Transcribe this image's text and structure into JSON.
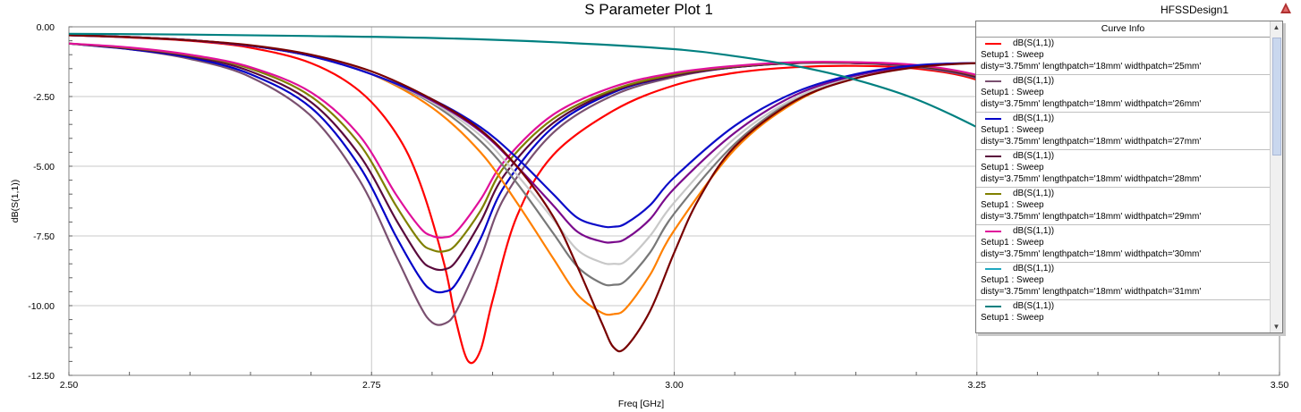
{
  "window": {
    "design_name": "HFSSDesign1"
  },
  "legend": {
    "header": "Curve Info",
    "entries": [
      {
        "name": "dB(S(1,1))",
        "line2": "Setup1 : Sweep",
        "line3": "disty='3.75mm' lengthpatch='18mm' widthpatch='25mm'",
        "color": "#ff0000"
      },
      {
        "name": "dB(S(1,1))",
        "line2": "Setup1 : Sweep",
        "line3": "disty='3.75mm' lengthpatch='18mm' widthpatch='26mm'",
        "color": "#7a5070"
      },
      {
        "name": "dB(S(1,1))",
        "line2": "Setup1 : Sweep",
        "line3": "disty='3.75mm' lengthpatch='18mm' widthpatch='27mm'",
        "color": "#0000c8"
      },
      {
        "name": "dB(S(1,1))",
        "line2": "Setup1 : Sweep",
        "line3": "disty='3.75mm' lengthpatch='18mm' widthpatch='28mm'",
        "color": "#5a0a3c"
      },
      {
        "name": "dB(S(1,1))",
        "line2": "Setup1 : Sweep",
        "line3": "disty='3.75mm' lengthpatch='18mm' widthpatch='29mm'",
        "color": "#808000"
      },
      {
        "name": "dB(S(1,1))",
        "line2": "Setup1 : Sweep",
        "line3": "disty='3.75mm' lengthpatch='18mm' widthpatch='30mm'",
        "color": "#e0109a"
      },
      {
        "name": "dB(S(1,1))",
        "line2": "Setup1 : Sweep",
        "line3": "disty='3.75mm' lengthpatch='18mm' widthpatch='31mm'",
        "color": "#20a8c0"
      },
      {
        "name": "dB(S(1,1))",
        "line2": "Setup1 : Sweep",
        "line3": "",
        "color": "#008080"
      }
    ]
  },
  "chart_data": {
    "type": "line",
    "title": "S Parameter Plot 1",
    "xlabel": "Freq [GHz]",
    "ylabel": "dB(S(1,1))",
    "xlim": [
      2.5,
      3.5
    ],
    "ylim": [
      -12.5,
      0.0
    ],
    "xticks": [
      "2.50",
      "2.75",
      "3.00",
      "3.25",
      "3.50"
    ],
    "yticks": [
      "0.00",
      "-2.50",
      "-5.00",
      "-7.50",
      "-10.00",
      "-12.50"
    ],
    "grid": true,
    "legend_position": "top-right",
    "series": [
      {
        "color": "#ff0000",
        "x": [
          2.5,
          2.55,
          2.6,
          2.65,
          2.7,
          2.74,
          2.77,
          2.79,
          2.81,
          2.82,
          2.83,
          2.84,
          2.85,
          2.87,
          2.9,
          2.95,
          3.0,
          3.05,
          3.1,
          3.15,
          3.2,
          3.25,
          3.3,
          3.35,
          3.4,
          3.45,
          3.5
        ],
        "y": [
          -0.3,
          -0.38,
          -0.5,
          -0.75,
          -1.3,
          -2.3,
          -3.8,
          -5.6,
          -8.5,
          -10.6,
          -12.0,
          -11.6,
          -9.8,
          -6.8,
          -4.6,
          -3.0,
          -2.1,
          -1.65,
          -1.45,
          -1.4,
          -1.5,
          -1.9,
          -2.9,
          -4.6,
          -6.6,
          -8.6,
          -10.3
        ]
      },
      {
        "color": "#7a5070",
        "x": [
          2.5,
          2.55,
          2.6,
          2.65,
          2.7,
          2.74,
          2.77,
          2.79,
          2.8,
          2.81,
          2.82,
          2.84,
          2.86,
          2.9,
          2.95,
          3.0,
          3.05,
          3.1,
          3.15,
          3.2,
          3.25,
          3.3,
          3.35,
          3.4,
          3.45,
          3.5
        ],
        "y": [
          -0.6,
          -0.8,
          -1.15,
          -1.8,
          -3.2,
          -5.5,
          -8.2,
          -10.0,
          -10.6,
          -10.65,
          -10.2,
          -8.3,
          -6.1,
          -3.8,
          -2.45,
          -1.8,
          -1.45,
          -1.3,
          -1.3,
          -1.45,
          -1.85,
          -2.7,
          -4.2,
          -6.2,
          -8.3,
          -10.0
        ]
      },
      {
        "color": "#0000c8",
        "x": [
          2.5,
          2.55,
          2.6,
          2.65,
          2.7,
          2.74,
          2.77,
          2.79,
          2.8,
          2.81,
          2.82,
          2.84,
          2.86,
          2.9,
          2.95,
          3.0,
          3.05,
          3.1,
          3.15,
          3.2,
          3.25,
          3.3,
          3.35,
          3.4,
          3.45,
          3.5
        ],
        "y": [
          -0.6,
          -0.8,
          -1.1,
          -1.7,
          -2.9,
          -5.0,
          -7.5,
          -9.0,
          -9.45,
          -9.5,
          -9.2,
          -7.6,
          -5.7,
          -3.6,
          -2.35,
          -1.75,
          -1.45,
          -1.3,
          -1.3,
          -1.4,
          -1.8,
          -2.6,
          -4.0,
          -6.0,
          -8.0,
          -9.8
        ]
      },
      {
        "color": "#5a0a3c",
        "x": [
          2.5,
          2.55,
          2.6,
          2.65,
          2.7,
          2.74,
          2.77,
          2.79,
          2.8,
          2.81,
          2.82,
          2.84,
          2.86,
          2.9,
          2.95,
          3.0,
          3.05,
          3.1,
          3.15,
          3.2,
          3.25,
          3.3,
          3.35,
          3.4,
          3.45,
          3.5
        ],
        "y": [
          -0.6,
          -0.78,
          -1.05,
          -1.6,
          -2.7,
          -4.6,
          -6.9,
          -8.3,
          -8.65,
          -8.7,
          -8.4,
          -7.0,
          -5.3,
          -3.45,
          -2.3,
          -1.75,
          -1.45,
          -1.3,
          -1.3,
          -1.4,
          -1.8,
          -2.6,
          -4.0,
          -5.9,
          -7.9,
          -9.7
        ]
      },
      {
        "color": "#808000",
        "x": [
          2.5,
          2.55,
          2.6,
          2.65,
          2.7,
          2.74,
          2.77,
          2.79,
          2.8,
          2.81,
          2.82,
          2.84,
          2.86,
          2.9,
          2.95,
          3.0,
          3.05,
          3.1,
          3.15,
          3.2,
          3.25,
          3.3,
          3.35,
          3.4,
          3.45,
          3.5
        ],
        "y": [
          -0.6,
          -0.76,
          -1.02,
          -1.5,
          -2.5,
          -4.2,
          -6.4,
          -7.7,
          -8.0,
          -8.05,
          -7.8,
          -6.6,
          -5.0,
          -3.3,
          -2.25,
          -1.7,
          -1.42,
          -1.28,
          -1.28,
          -1.38,
          -1.75,
          -2.55,
          -3.9,
          -5.8,
          -7.8,
          -9.6
        ]
      },
      {
        "color": "#e0109a",
        "x": [
          2.5,
          2.55,
          2.6,
          2.65,
          2.7,
          2.74,
          2.77,
          2.79,
          2.8,
          2.81,
          2.82,
          2.84,
          2.86,
          2.9,
          2.95,
          3.0,
          3.05,
          3.1,
          3.15,
          3.2,
          3.25,
          3.3,
          3.35,
          3.4,
          3.45,
          3.5
        ],
        "y": [
          -0.6,
          -0.74,
          -1.0,
          -1.45,
          -2.35,
          -3.9,
          -6.0,
          -7.2,
          -7.5,
          -7.55,
          -7.35,
          -6.2,
          -4.8,
          -3.15,
          -2.15,
          -1.65,
          -1.4,
          -1.27,
          -1.27,
          -1.37,
          -1.73,
          -2.5,
          -3.85,
          -5.7,
          -7.7,
          -9.5
        ]
      },
      {
        "color": "#ff8000",
        "x": [
          2.5,
          2.55,
          2.6,
          2.65,
          2.7,
          2.75,
          2.8,
          2.84,
          2.87,
          2.9,
          2.92,
          2.94,
          2.95,
          2.96,
          2.98,
          3.0,
          3.05,
          3.1,
          3.15,
          3.2,
          3.25,
          3.3,
          3.35,
          3.4,
          3.45,
          3.5
        ],
        "y": [
          -0.3,
          -0.37,
          -0.48,
          -0.68,
          -1.05,
          -1.7,
          -2.9,
          -4.5,
          -6.3,
          -8.3,
          -9.6,
          -10.25,
          -10.3,
          -10.1,
          -8.9,
          -7.3,
          -4.4,
          -2.7,
          -1.8,
          -1.4,
          -1.3,
          -1.3,
          -1.6,
          -2.5,
          -4.2,
          -6.5
        ]
      },
      {
        "color": "#787878",
        "x": [
          2.5,
          2.55,
          2.6,
          2.65,
          2.7,
          2.75,
          2.8,
          2.84,
          2.87,
          2.9,
          2.92,
          2.94,
          2.95,
          2.96,
          2.98,
          3.0,
          3.05,
          3.1,
          3.15,
          3.2,
          3.25,
          3.3,
          3.35,
          3.4,
          3.45,
          3.5
        ],
        "y": [
          -0.3,
          -0.37,
          -0.48,
          -0.68,
          -1.05,
          -1.7,
          -2.75,
          -4.1,
          -5.6,
          -7.4,
          -8.6,
          -9.2,
          -9.25,
          -9.1,
          -8.1,
          -6.7,
          -4.2,
          -2.6,
          -1.8,
          -1.4,
          -1.3,
          -1.3,
          -1.6,
          -2.5,
          -4.2,
          -6.5
        ]
      },
      {
        "color": "#c8c8c8",
        "x": [
          2.5,
          2.55,
          2.6,
          2.65,
          2.7,
          2.75,
          2.8,
          2.84,
          2.87,
          2.9,
          2.92,
          2.94,
          2.95,
          2.96,
          2.98,
          3.0,
          3.05,
          3.1,
          3.15,
          3.2,
          3.25,
          3.3,
          3.35,
          3.4,
          3.45,
          3.5
        ],
        "y": [
          -0.3,
          -0.37,
          -0.48,
          -0.68,
          -1.05,
          -1.7,
          -2.7,
          -3.9,
          -5.3,
          -6.9,
          -8.0,
          -8.45,
          -8.5,
          -8.4,
          -7.5,
          -6.3,
          -4.0,
          -2.55,
          -1.78,
          -1.4,
          -1.3,
          -1.3,
          -1.6,
          -2.5,
          -4.2,
          -6.5
        ]
      },
      {
        "color": "#7a0a8c",
        "x": [
          2.5,
          2.55,
          2.6,
          2.65,
          2.7,
          2.75,
          2.8,
          2.84,
          2.87,
          2.9,
          2.92,
          2.94,
          2.95,
          2.96,
          2.98,
          3.0,
          3.05,
          3.1,
          3.15,
          3.2,
          3.25,
          3.3,
          3.35,
          3.4,
          3.45,
          3.5
        ],
        "y": [
          -0.3,
          -0.37,
          -0.48,
          -0.68,
          -1.05,
          -1.7,
          -2.65,
          -3.75,
          -5.0,
          -6.4,
          -7.35,
          -7.7,
          -7.72,
          -7.6,
          -6.9,
          -5.8,
          -3.8,
          -2.45,
          -1.75,
          -1.4,
          -1.3,
          -1.3,
          -1.6,
          -2.5,
          -4.2,
          -6.5
        ]
      },
      {
        "color": "#0c0cc8",
        "x": [
          2.5,
          2.55,
          2.6,
          2.65,
          2.7,
          2.75,
          2.8,
          2.84,
          2.87,
          2.9,
          2.92,
          2.94,
          2.95,
          2.96,
          2.98,
          3.0,
          3.05,
          3.1,
          3.15,
          3.2,
          3.25,
          3.3,
          3.35,
          3.4,
          3.45,
          3.5
        ],
        "y": [
          -0.3,
          -0.37,
          -0.48,
          -0.68,
          -1.05,
          -1.7,
          -2.6,
          -3.6,
          -4.7,
          -6.0,
          -6.85,
          -7.15,
          -7.17,
          -7.05,
          -6.4,
          -5.4,
          -3.55,
          -2.35,
          -1.7,
          -1.38,
          -1.3,
          -1.3,
          -1.6,
          -2.5,
          -4.2,
          -6.5
        ]
      },
      {
        "color": "#780000",
        "x": [
          2.5,
          2.55,
          2.6,
          2.65,
          2.7,
          2.75,
          2.8,
          2.84,
          2.87,
          2.9,
          2.92,
          2.94,
          2.95,
          2.96,
          2.98,
          3.0,
          3.02,
          3.05,
          3.1,
          3.15,
          3.2,
          3.25,
          3.3,
          3.35,
          3.4,
          3.45,
          3.5
        ],
        "y": [
          -0.3,
          -0.37,
          -0.48,
          -0.66,
          -1.0,
          -1.6,
          -2.6,
          -3.7,
          -5.0,
          -6.8,
          -8.6,
          -10.6,
          -11.5,
          -11.5,
          -10.2,
          -8.1,
          -6.2,
          -4.3,
          -2.65,
          -1.85,
          -1.45,
          -1.3,
          -1.3,
          -1.6,
          -2.5,
          -4.2,
          -6.5
        ]
      },
      {
        "color": "#008080",
        "x": [
          2.5,
          2.6,
          2.7,
          2.8,
          2.9,
          3.0,
          3.05,
          3.1,
          3.15,
          3.2,
          3.25,
          3.3,
          3.35,
          3.4,
          3.45,
          3.5
        ],
        "y": [
          -0.25,
          -0.28,
          -0.33,
          -0.4,
          -0.55,
          -0.8,
          -1.05,
          -1.4,
          -1.9,
          -2.6,
          -3.6,
          -4.8,
          -6.3,
          -8.0,
          -9.6,
          -11.0
        ]
      }
    ]
  }
}
